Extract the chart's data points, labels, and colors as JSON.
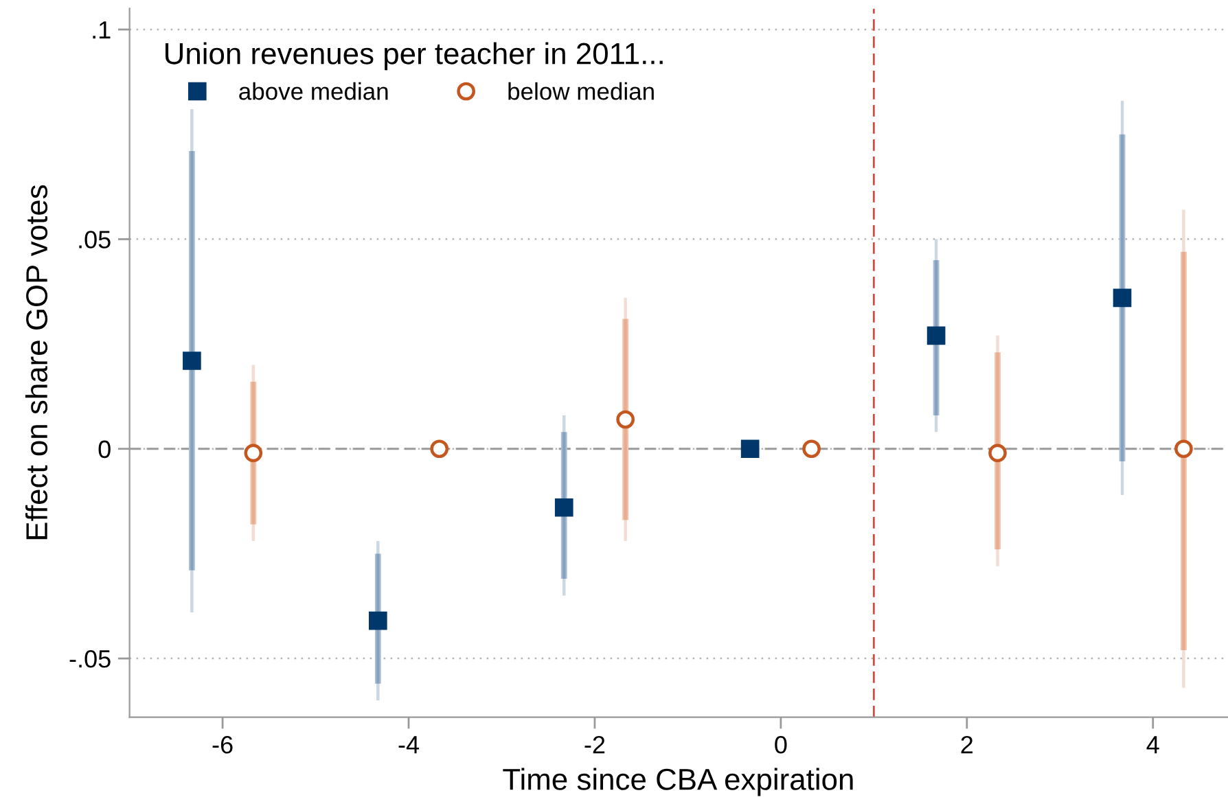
{
  "chart_data": {
    "type": "scatter",
    "xlabel": "Time since CBA expiration",
    "ylabel": "Effect on share GOP votes",
    "legend_title": "Union revenues per teacher in 2011...",
    "legend": "top left",
    "grid": "y",
    "xlim": [
      -7,
      4.8
    ],
    "ylim": [
      -0.064,
      0.105
    ],
    "xticks": [
      -6,
      -4,
      -2,
      0,
      2,
      4
    ],
    "yticks": [
      {
        "value": -0.05,
        "label": "-.05"
      },
      0,
      {
        "value": 0.05,
        "label": ".05"
      },
      {
        "value": 0.1,
        "label": ".1"
      }
    ],
    "ref_lines": [
      {
        "axis": "y",
        "value": 0,
        "color": "#9a9a9a",
        "line_style": "dashed"
      },
      {
        "axis": "x",
        "value": 1,
        "color": "#e0483e",
        "line_style": "dashed"
      }
    ],
    "series": [
      {
        "type": "bar",
        "color": "#a9bdd3",
        "x": [
          -6.33,
          -4.33,
          -2.33,
          -0.33,
          1.67,
          3.67
        ],
        "base": [
          -0.029,
          -0.056,
          -0.031,
          null,
          0.008,
          -0.003
        ],
        "values": [
          0.1,
          0.031,
          0.035,
          null,
          0.037,
          0.078
        ]
      },
      {
        "type": "bar",
        "color": "#f1c3ab",
        "x": [
          -5.67,
          -3.67,
          -1.67,
          0.33,
          2.33,
          4.33
        ],
        "base": [
          -0.018,
          null,
          -0.017,
          null,
          -0.024,
          -0.048
        ],
        "values": [
          0.034,
          null,
          0.048,
          null,
          0.047,
          0.095
        ]
      },
      {
        "name": "above median",
        "color": "#00386c",
        "marker": "square",
        "x": [
          -6.33,
          -4.33,
          -2.33,
          -0.33,
          1.67,
          3.67
        ],
        "values": [
          0.021,
          -0.041,
          -0.014,
          0,
          0.027,
          0.036
        ],
        "errors": [
          [
            -0.039,
            0.081
          ],
          [
            -0.06,
            -0.022
          ],
          [
            -0.035,
            0.008
          ],
          null,
          [
            0.004,
            0.05
          ],
          [
            -0.011,
            0.083
          ]
        ]
      },
      {
        "name": "below median",
        "color": "#c4561f",
        "marker": "circle",
        "x": [
          -5.67,
          -3.67,
          -1.67,
          0.33,
          2.33,
          4.33
        ],
        "values": [
          -0.001,
          0,
          0.007,
          0,
          -0.001,
          0
        ],
        "errors": [
          [
            -0.022,
            0.02
          ],
          null,
          [
            -0.022,
            0.036
          ],
          null,
          [
            -0.028,
            0.027
          ],
          [
            -0.057,
            0.057
          ]
        ]
      }
    ]
  }
}
